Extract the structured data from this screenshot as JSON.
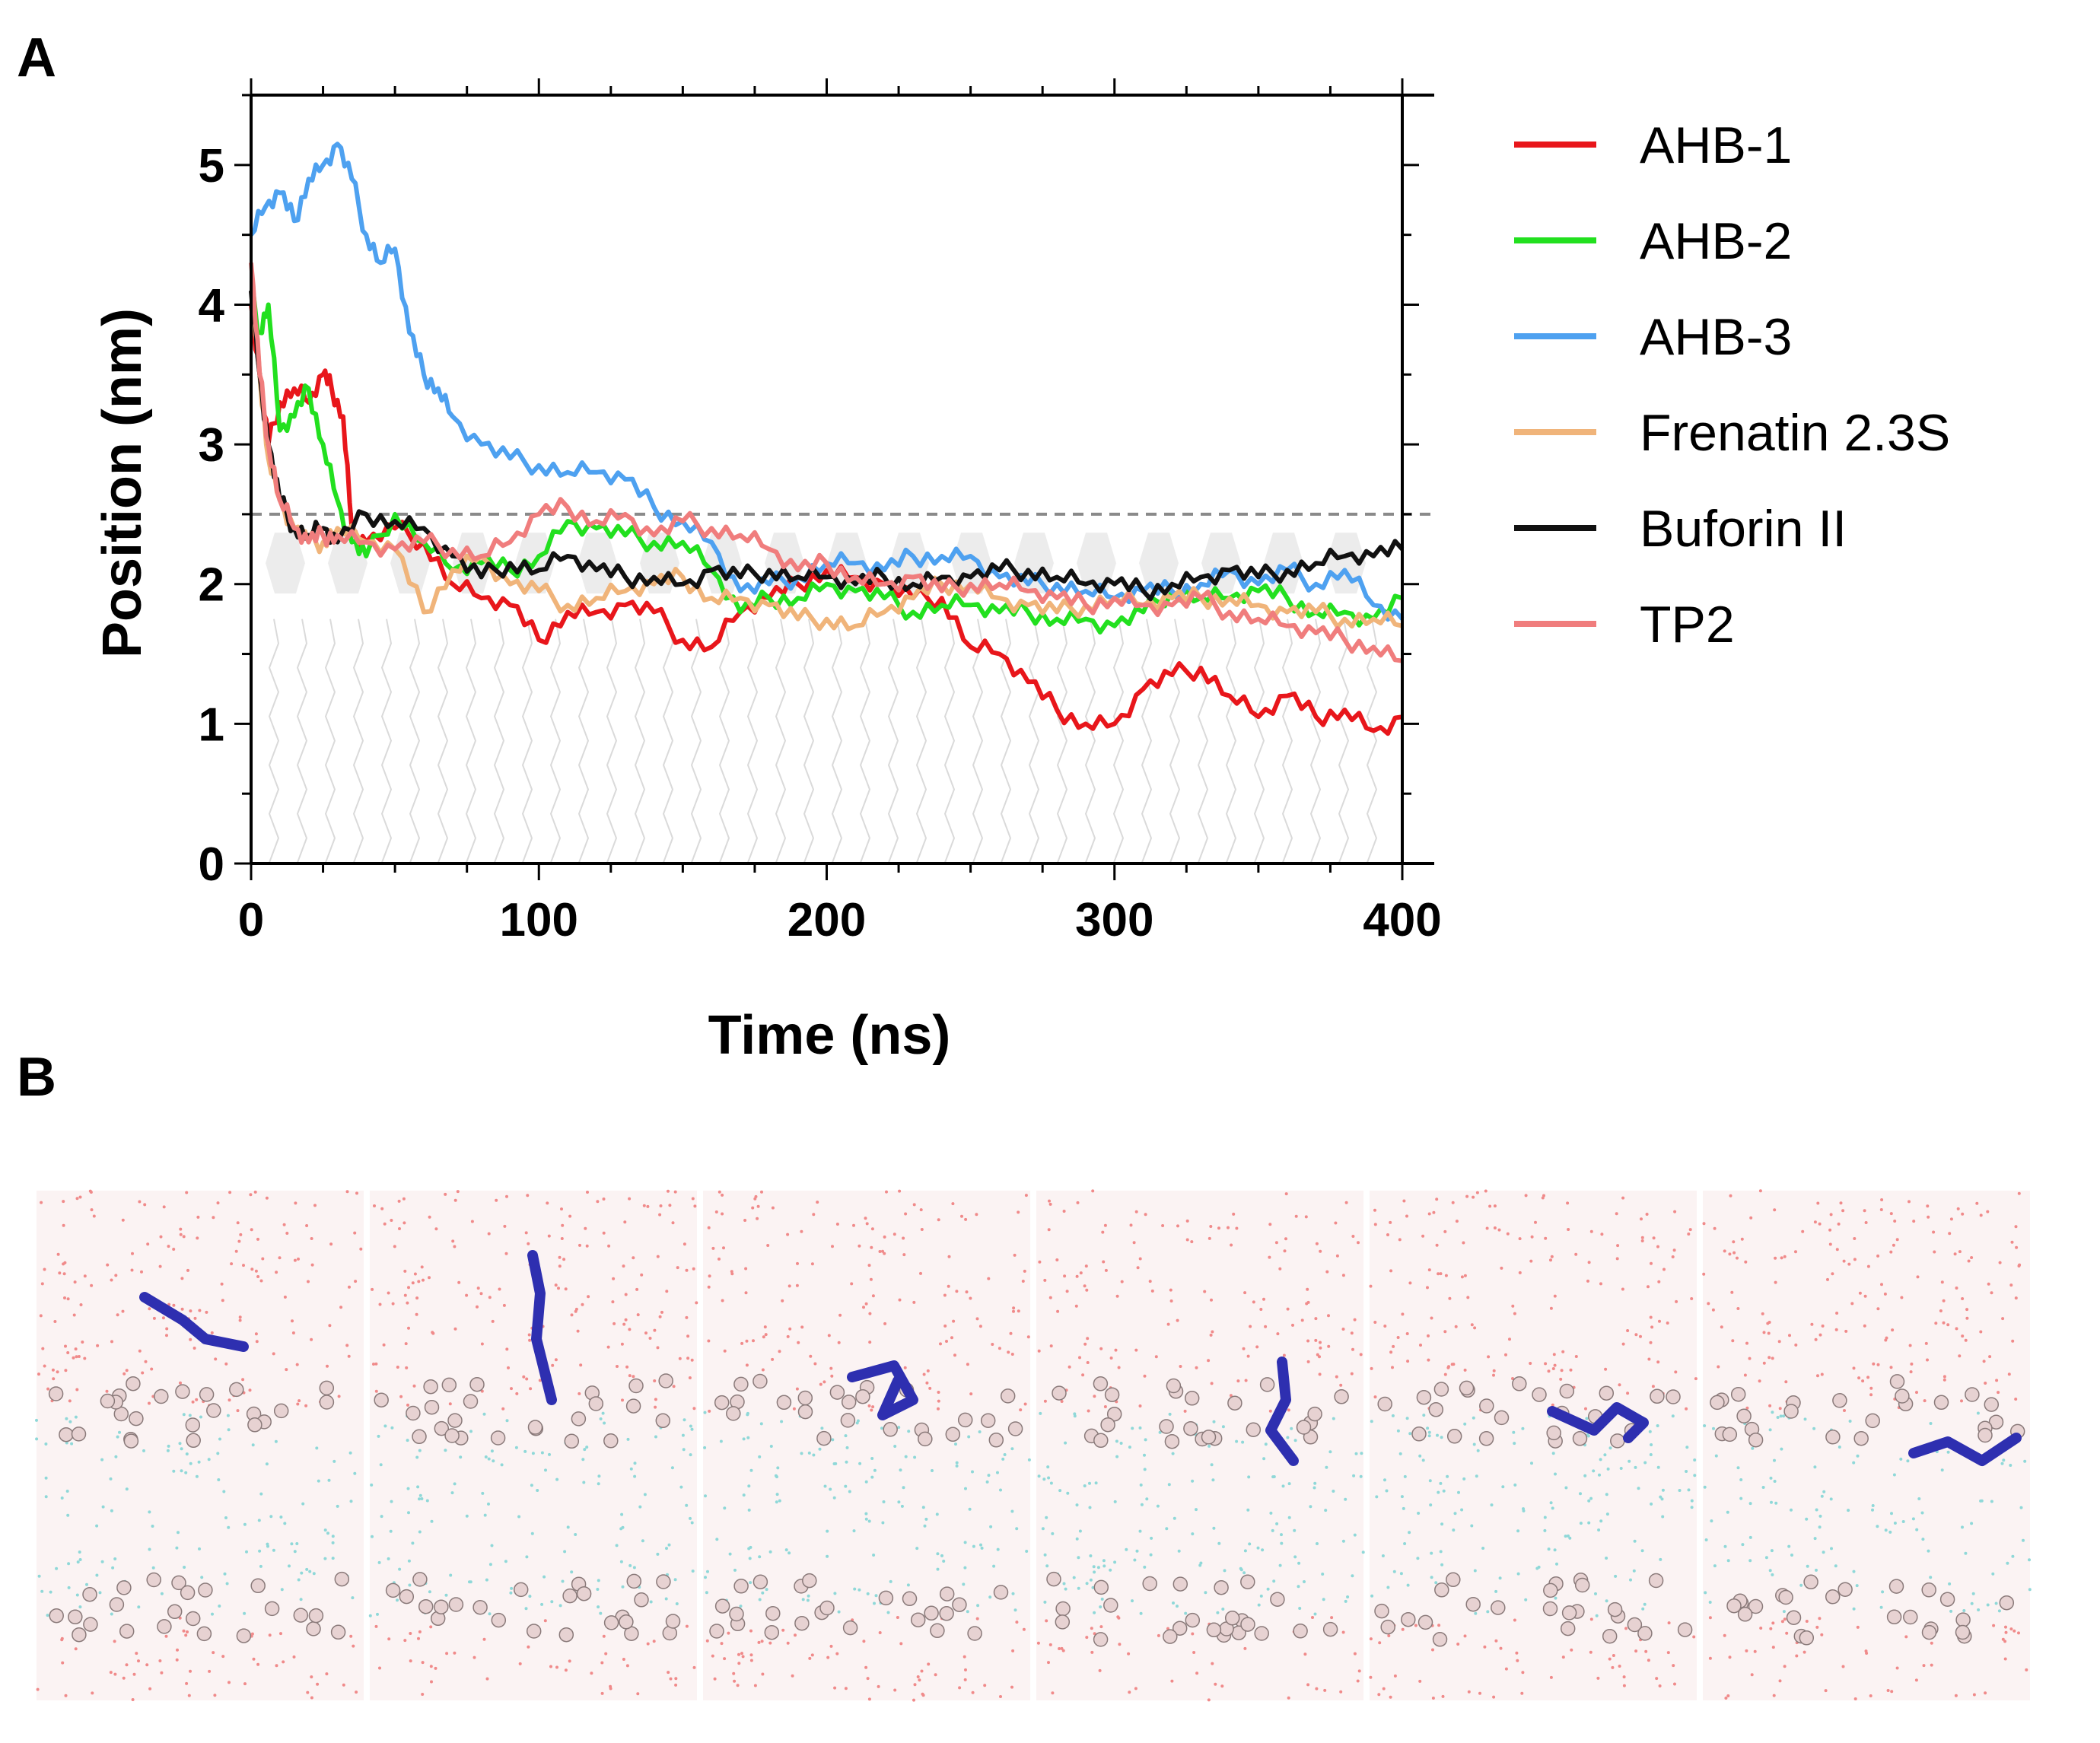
{
  "panel_a_label": "A",
  "panel_b_label": "B",
  "chart_data": {
    "type": "line",
    "title": "",
    "xlabel": "Time (ns)",
    "ylabel": "Position (nm)",
    "xlim": [
      0,
      400
    ],
    "ylim": [
      0,
      5.5
    ],
    "xticks": [
      0,
      100,
      200,
      300,
      400
    ],
    "yticks": [
      0,
      1,
      2,
      3,
      4,
      5
    ],
    "reference_line": {
      "y": 2.5,
      "style": "dashed",
      "color": "#8a8a8a"
    },
    "legend_position": "right",
    "series": [
      {
        "name": "AHB-1",
        "color": "#e8161b",
        "x": [
          0,
          3,
          6,
          10,
          15,
          20,
          25,
          28,
          32,
          35,
          40,
          50,
          60,
          70,
          80,
          90,
          100,
          110,
          120,
          130,
          140,
          150,
          160,
          170,
          180,
          190,
          200,
          210,
          220,
          230,
          240,
          250,
          260,
          270,
          280,
          290,
          300,
          310,
          320,
          330,
          340,
          350,
          360,
          370,
          380,
          390,
          400
        ],
        "y": [
          4.0,
          3.5,
          3.0,
          3.3,
          3.4,
          3.3,
          3.5,
          3.4,
          3.2,
          2.4,
          2.3,
          2.4,
          2.3,
          2.0,
          1.9,
          1.85,
          1.6,
          1.8,
          1.8,
          1.85,
          1.8,
          1.6,
          1.55,
          1.8,
          1.9,
          2.0,
          2.1,
          2.05,
          2.0,
          1.9,
          1.9,
          1.55,
          1.5,
          1.3,
          1.1,
          1.0,
          1.0,
          1.25,
          1.35,
          1.4,
          1.2,
          1.05,
          1.2,
          1.05,
          1.1,
          0.95,
          1.05
        ]
      },
      {
        "name": "AHB-2",
        "color": "#22e01f",
        "x": [
          0,
          3,
          6,
          10,
          15,
          20,
          25,
          30,
          35,
          40,
          50,
          60,
          70,
          80,
          90,
          100,
          110,
          120,
          130,
          140,
          150,
          160,
          170,
          180,
          190,
          200,
          210,
          220,
          230,
          240,
          250,
          260,
          270,
          280,
          290,
          300,
          310,
          320,
          330,
          340,
          350,
          360,
          370,
          380,
          390,
          400
        ],
        "y": [
          4.1,
          3.8,
          4.0,
          3.1,
          3.2,
          3.4,
          3.0,
          2.6,
          2.3,
          2.2,
          2.5,
          2.3,
          2.1,
          2.15,
          2.1,
          2.2,
          2.45,
          2.4,
          2.35,
          2.3,
          2.3,
          2.1,
          1.8,
          1.9,
          1.9,
          2.0,
          1.95,
          1.9,
          1.8,
          1.85,
          1.85,
          1.8,
          1.8,
          1.75,
          1.75,
          1.7,
          1.8,
          1.95,
          1.9,
          1.9,
          1.95,
          1.9,
          1.8,
          1.8,
          1.75,
          1.9
        ]
      },
      {
        "name": "AHB-3",
        "color": "#4ea1f0",
        "x": [
          0,
          5,
          10,
          15,
          20,
          25,
          30,
          35,
          40,
          45,
          50,
          55,
          60,
          65,
          70,
          80,
          90,
          100,
          110,
          120,
          130,
          140,
          150,
          160,
          170,
          180,
          190,
          200,
          210,
          220,
          230,
          240,
          250,
          260,
          270,
          280,
          290,
          300,
          310,
          320,
          330,
          340,
          350,
          360,
          370,
          380,
          390,
          400
        ],
        "y": [
          4.5,
          4.7,
          4.8,
          4.6,
          4.9,
          5.0,
          5.15,
          4.9,
          4.5,
          4.3,
          4.4,
          3.8,
          3.5,
          3.4,
          3.2,
          3.0,
          2.9,
          2.85,
          2.8,
          2.8,
          2.75,
          2.55,
          2.45,
          2.3,
          1.95,
          2.0,
          2.05,
          2.15,
          2.15,
          2.1,
          2.2,
          2.2,
          2.2,
          2.05,
          2.0,
          2.0,
          1.95,
          1.9,
          1.95,
          1.95,
          2.0,
          2.1,
          2.0,
          2.1,
          2.0,
          2.1,
          1.85,
          1.75
        ]
      },
      {
        "name": "Frenatin 2.3S",
        "color": "#f0b47a",
        "x": [
          0,
          3,
          6,
          10,
          15,
          20,
          25,
          30,
          40,
          50,
          60,
          70,
          80,
          90,
          100,
          110,
          120,
          130,
          140,
          150,
          160,
          170,
          180,
          190,
          200,
          210,
          220,
          230,
          240,
          250,
          260,
          270,
          280,
          290,
          300,
          310,
          320,
          330,
          340,
          350,
          360,
          370,
          380,
          390,
          400
        ],
        "y": [
          4.1,
          3.5,
          2.9,
          2.6,
          2.4,
          2.3,
          2.3,
          2.4,
          2.3,
          2.25,
          1.8,
          2.1,
          2.2,
          2.0,
          1.95,
          1.85,
          1.9,
          1.95,
          2.0,
          2.05,
          1.9,
          1.9,
          1.85,
          1.75,
          1.75,
          1.7,
          1.8,
          1.9,
          2.0,
          2.0,
          1.9,
          1.85,
          1.8,
          1.85,
          1.9,
          1.85,
          1.9,
          1.9,
          1.9,
          1.85,
          1.8,
          1.8,
          1.75,
          1.75,
          1.7
        ]
      },
      {
        "name": "Buforin II",
        "color": "#111111",
        "x": [
          0,
          3,
          6,
          10,
          15,
          20,
          25,
          30,
          40,
          50,
          60,
          70,
          80,
          90,
          100,
          110,
          120,
          130,
          140,
          150,
          160,
          170,
          180,
          190,
          200,
          210,
          220,
          230,
          240,
          250,
          260,
          270,
          280,
          290,
          300,
          310,
          320,
          330,
          340,
          350,
          360,
          370,
          380,
          390,
          400
        ],
        "y": [
          4.1,
          3.5,
          3.0,
          2.6,
          2.4,
          2.35,
          2.4,
          2.3,
          2.5,
          2.45,
          2.4,
          2.2,
          2.05,
          2.15,
          2.1,
          2.2,
          2.1,
          2.05,
          2.05,
          2.0,
          2.1,
          2.05,
          2.1,
          2.05,
          2.05,
          2.0,
          2.05,
          2.0,
          2.05,
          2.05,
          2.1,
          2.1,
          2.05,
          2.0,
          2.0,
          1.95,
          2.0,
          2.05,
          2.1,
          2.05,
          2.1,
          2.15,
          2.2,
          2.2,
          2.25
        ]
      },
      {
        "name": "TP2",
        "color": "#f07d7d",
        "x": [
          0,
          3,
          6,
          10,
          15,
          20,
          25,
          30,
          40,
          50,
          60,
          70,
          80,
          90,
          100,
          110,
          120,
          130,
          140,
          150,
          160,
          170,
          180,
          190,
          200,
          210,
          220,
          230,
          240,
          250,
          260,
          270,
          280,
          290,
          300,
          310,
          320,
          330,
          340,
          350,
          360,
          370,
          380,
          390,
          400
        ],
        "y": [
          4.3,
          3.5,
          3.0,
          2.6,
          2.4,
          2.3,
          2.35,
          2.35,
          2.3,
          2.25,
          2.3,
          2.25,
          2.2,
          2.3,
          2.5,
          2.55,
          2.45,
          2.5,
          2.35,
          2.45,
          2.4,
          2.35,
          2.25,
          2.1,
          2.15,
          2.05,
          2.0,
          2.05,
          1.95,
          2.0,
          2.0,
          1.95,
          1.9,
          1.85,
          1.9,
          1.85,
          1.85,
          1.9,
          1.8,
          1.75,
          1.7,
          1.65,
          1.6,
          1.55,
          1.45
        ]
      }
    ]
  }
}
